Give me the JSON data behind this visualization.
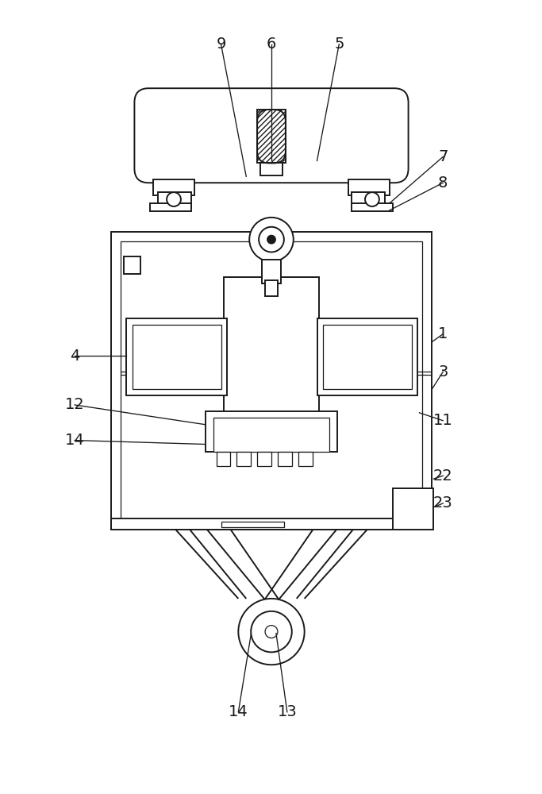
{
  "bg_color": "#ffffff",
  "line_color": "#1a1a1a",
  "fig_width": 6.83,
  "fig_height": 10.0
}
